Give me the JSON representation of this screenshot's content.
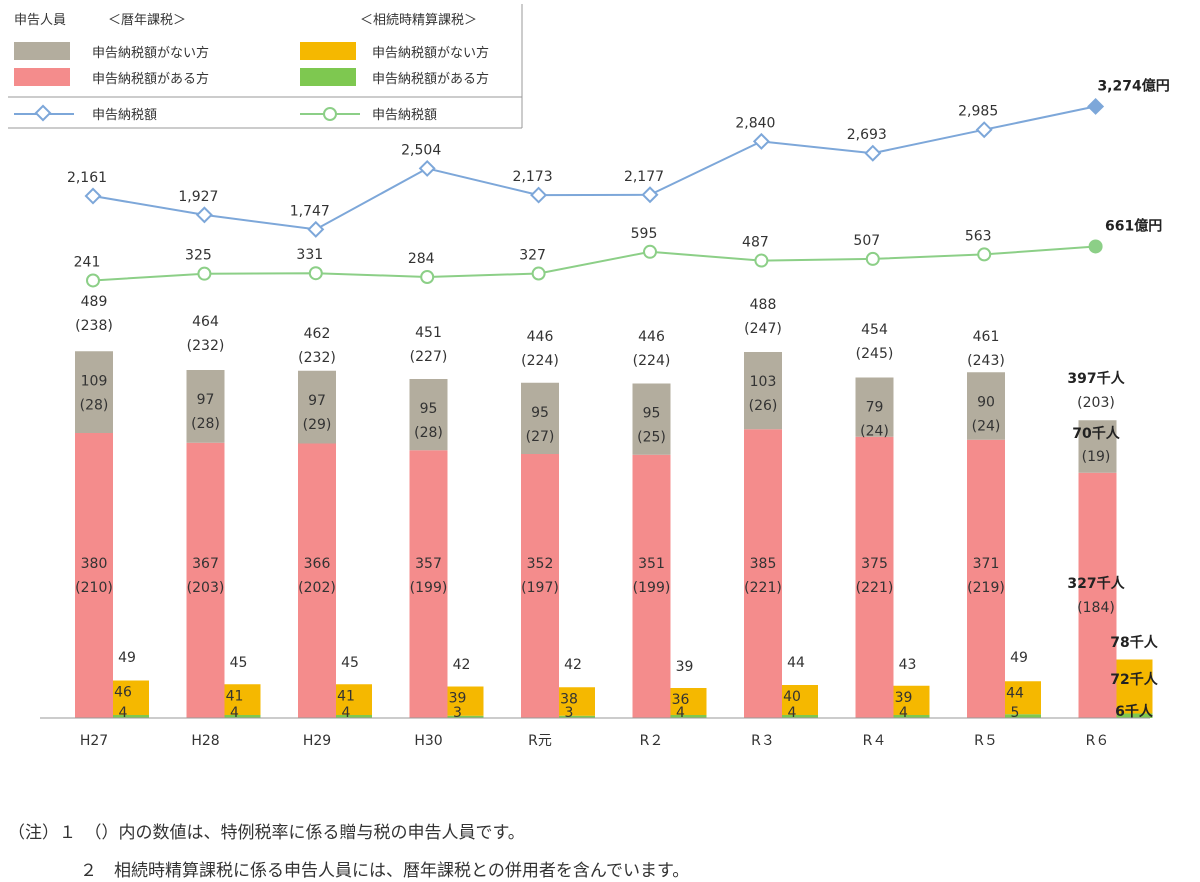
{
  "legend": {
    "applicants_title": "申告人員",
    "calendar_group": "＜暦年課税＞",
    "settlement_group": "＜相続時精算課税＞",
    "cal_no_tax": "申告納税額がない方",
    "cal_with_tax": "申告納税額がある方",
    "set_no_tax": "申告納税額がない方",
    "set_with_tax": "申告納税額がある方",
    "cal_tax_line": "申告納税額",
    "set_tax_line": "申告納税額"
  },
  "colors": {
    "cal_no_tax": "#b3ad9e",
    "cal_with_tax": "#f48c8c",
    "set_no_tax": "#f5b800",
    "set_with_tax": "#7ec850",
    "cal_tax_line": "#7da7d9",
    "set_tax_line": "#8ccf87"
  },
  "chart_data": {
    "type": "bar",
    "categories": [
      "H27",
      "H28",
      "H29",
      "H30",
      "R元",
      "R２",
      "R３",
      "R４",
      "R５",
      "R６"
    ],
    "calendar": {
      "total": [
        "489",
        "464",
        "462",
        "451",
        "446",
        "446",
        "488",
        "454",
        "461",
        "397千人"
      ],
      "total_special": [
        "(238)",
        "(232)",
        "(232)",
        "(227)",
        "(224)",
        "(224)",
        "(247)",
        "(245)",
        "(243)",
        "(203)"
      ],
      "no_tax": [
        109,
        97,
        97,
        95,
        95,
        95,
        103,
        79,
        90,
        70
      ],
      "no_tax_labels": [
        "109",
        "97",
        "97",
        "95",
        "95",
        "95",
        "103",
        "79",
        "90",
        "70千人"
      ],
      "no_tax_special": [
        "(28)",
        "(28)",
        "(29)",
        "(28)",
        "(27)",
        "(25)",
        "(26)",
        "(24)",
        "(24)",
        "(19)"
      ],
      "with_tax": [
        380,
        367,
        366,
        357,
        352,
        351,
        385,
        375,
        371,
        327
      ],
      "with_tax_labels": [
        "380",
        "367",
        "366",
        "357",
        "352",
        "351",
        "385",
        "375",
        "371",
        "327千人"
      ],
      "with_tax_special": [
        "(210)",
        "(203)",
        "(202)",
        "(199)",
        "(197)",
        "(199)",
        "(221)",
        "(221)",
        "(219)",
        "(184)"
      ]
    },
    "settlement": {
      "total": [
        "49",
        "45",
        "45",
        "42",
        "42",
        "39",
        "44",
        "43",
        "49",
        "78千人"
      ],
      "no_tax": [
        46,
        41,
        41,
        39,
        38,
        36,
        40,
        39,
        44,
        72
      ],
      "no_tax_labels": [
        "46",
        "41",
        "41",
        "39",
        "38",
        "36",
        "40",
        "39",
        "44",
        "72千人"
      ],
      "with_tax": [
        4,
        4,
        4,
        3,
        3,
        4,
        4,
        4,
        5,
        6
      ],
      "with_tax_labels": [
        "4",
        "4",
        "4",
        "3",
        "3",
        "4",
        "4",
        "4",
        "5",
        "6千人"
      ]
    },
    "tax_lines": {
      "calendar_values": [
        2161,
        1927,
        1747,
        2504,
        2173,
        2177,
        2840,
        2693,
        2985,
        3274
      ],
      "calendar_labels": [
        "2,161",
        "1,927",
        "1,747",
        "2,504",
        "2,173",
        "2,177",
        "2,840",
        "2,693",
        "2,985",
        "3,274億円"
      ],
      "settlement_values": [
        241,
        325,
        331,
        284,
        327,
        595,
        487,
        507,
        563,
        661
      ],
      "settlement_labels": [
        "241",
        "325",
        "331",
        "284",
        "327",
        "595",
        "487",
        "507",
        "563",
        "661億円"
      ]
    }
  },
  "notes": {
    "line1": "（注）１　（）内の数値は、特例税率に係る贈与税の申告人員です。",
    "line2": "２　相続時精算課税に係る申告人員には、暦年課税との併用者を含んでいます。"
  }
}
